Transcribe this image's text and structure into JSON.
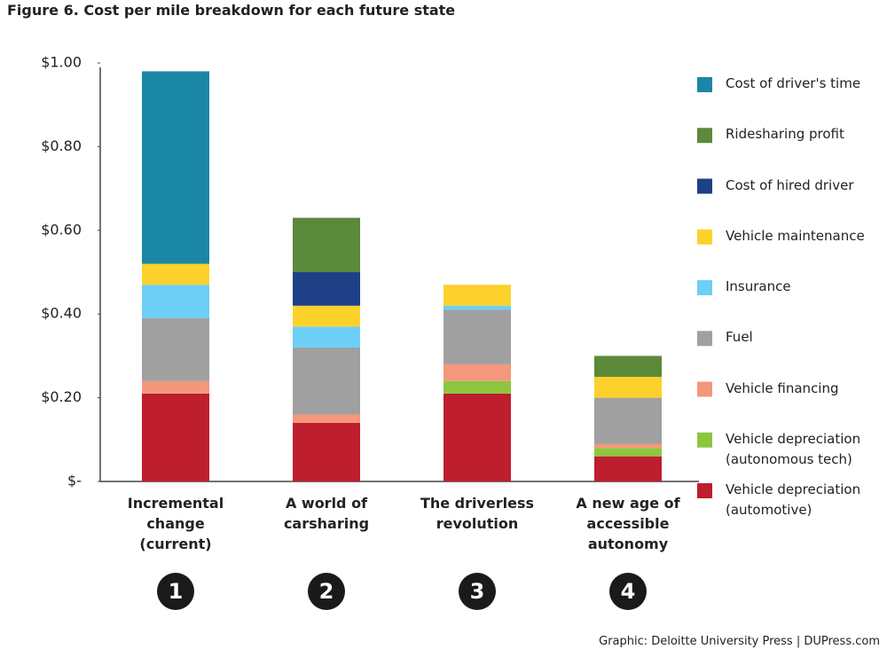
{
  "chart_data": {
    "type": "stacked_bar",
    "title": "Figure 6. Cost per mile breakdown for each future state",
    "source": "Graphic: Deloitte University Press | DUPress.com",
    "categories": [
      "Incremental change (current)",
      "A world of carsharing",
      "The driverless revolution",
      "A new age of accessible autonomy"
    ],
    "category_numbers": [
      "1",
      "2",
      "3",
      "4"
    ],
    "series": [
      {
        "name": "Vehicle depreciation (automotive)",
        "color": "#be1e2d",
        "values": [
          0.21,
          0.14,
          0.21,
          0.06
        ]
      },
      {
        "name": "Vehicle depreciation (autonomous tech)",
        "color": "#8dc63f",
        "values": [
          0,
          0,
          0.03,
          0.02
        ]
      },
      {
        "name": "Vehicle financing",
        "color": "#f4977a",
        "values": [
          0.03,
          0.02,
          0.04,
          0.01
        ]
      },
      {
        "name": "Fuel",
        "color": "#a0a0a0",
        "values": [
          0.15,
          0.16,
          0.13,
          0.11
        ]
      },
      {
        "name": "Insurance",
        "color": "#6dcff6",
        "values": [
          0.08,
          0.05,
          0.01,
          0
        ]
      },
      {
        "name": "Vehicle maintenance",
        "color": "#fdd12b",
        "values": [
          0.05,
          0.05,
          0.05,
          0.05
        ]
      },
      {
        "name": "Cost of hired driver",
        "color": "#1f3f87",
        "values": [
          0,
          0.08,
          0,
          0
        ]
      },
      {
        "name": "Ridesharing profit",
        "color": "#5b8a3a",
        "values": [
          0,
          0.13,
          0,
          0.05
        ]
      },
      {
        "name": "Cost of driver's time",
        "color": "#1b87a6",
        "values": [
          0.46,
          0,
          0,
          0
        ]
      }
    ],
    "ylim": [
      0,
      1
    ],
    "yticks": [
      {
        "value": 0,
        "label": "$-"
      },
      {
        "value": 0.2,
        "label": "$0.20"
      },
      {
        "value": 0.4,
        "label": "$0.40"
      },
      {
        "value": 0.6,
        "label": "$0.60"
      },
      {
        "value": 0.8,
        "label": "$0.80"
      },
      {
        "value": 1,
        "label": "$1.00"
      }
    ],
    "legend": "right"
  }
}
